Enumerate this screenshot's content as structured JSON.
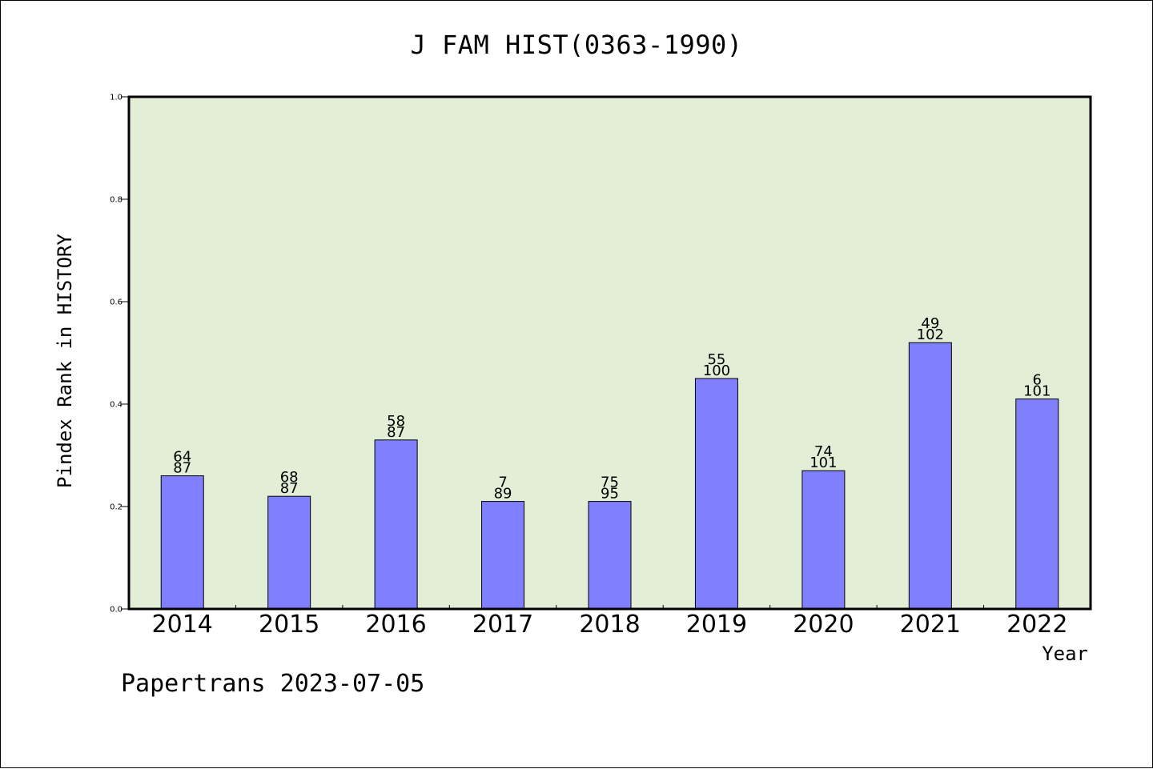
{
  "title": "J FAM HIST(0363-1990)",
  "footer": "Papertrans 2023-07-05",
  "chart_data": {
    "type": "bar",
    "title": "J FAM HIST(0363-1990)",
    "xlabel": "Year",
    "ylabel": "Pindex Rank in HISTORY",
    "ylim": [
      0,
      1.0
    ],
    "yticks": [
      "0.0",
      "0.2",
      "0.4",
      "0.6",
      "0.8",
      "1.0"
    ],
    "categories": [
      "2014",
      "2015",
      "2016",
      "2017",
      "2018",
      "2019",
      "2020",
      "2021",
      "2022"
    ],
    "values": [
      0.26,
      0.22,
      0.33,
      0.21,
      0.21,
      0.45,
      0.27,
      0.52,
      0.41
    ],
    "labels_top": [
      "64",
      "68",
      "58",
      "7",
      "75",
      "55",
      "74",
      "49",
      "6"
    ],
    "labels_bottom": [
      "87",
      "87",
      "87",
      "89",
      "95",
      "100",
      "101",
      "102",
      "101"
    ],
    "grid": false,
    "colors": {
      "bar": "#8080ff",
      "plot_bg": "#e2efd6",
      "frame": "#000000"
    }
  }
}
